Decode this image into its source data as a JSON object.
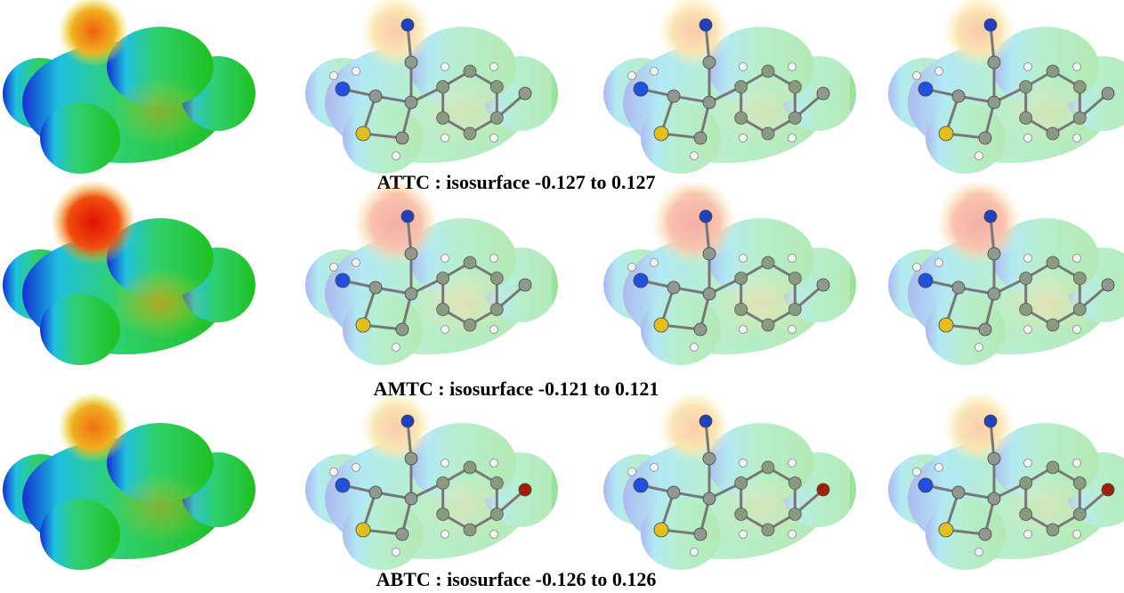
{
  "rows": [
    {
      "caption": "ATTC : isosurface -0.127 to 0.127"
    },
    {
      "caption": "AMTC : isosurface -0.121 to 0.121"
    },
    {
      "caption": "ABTC : isosurface -0.126 to 0.126"
    }
  ]
}
